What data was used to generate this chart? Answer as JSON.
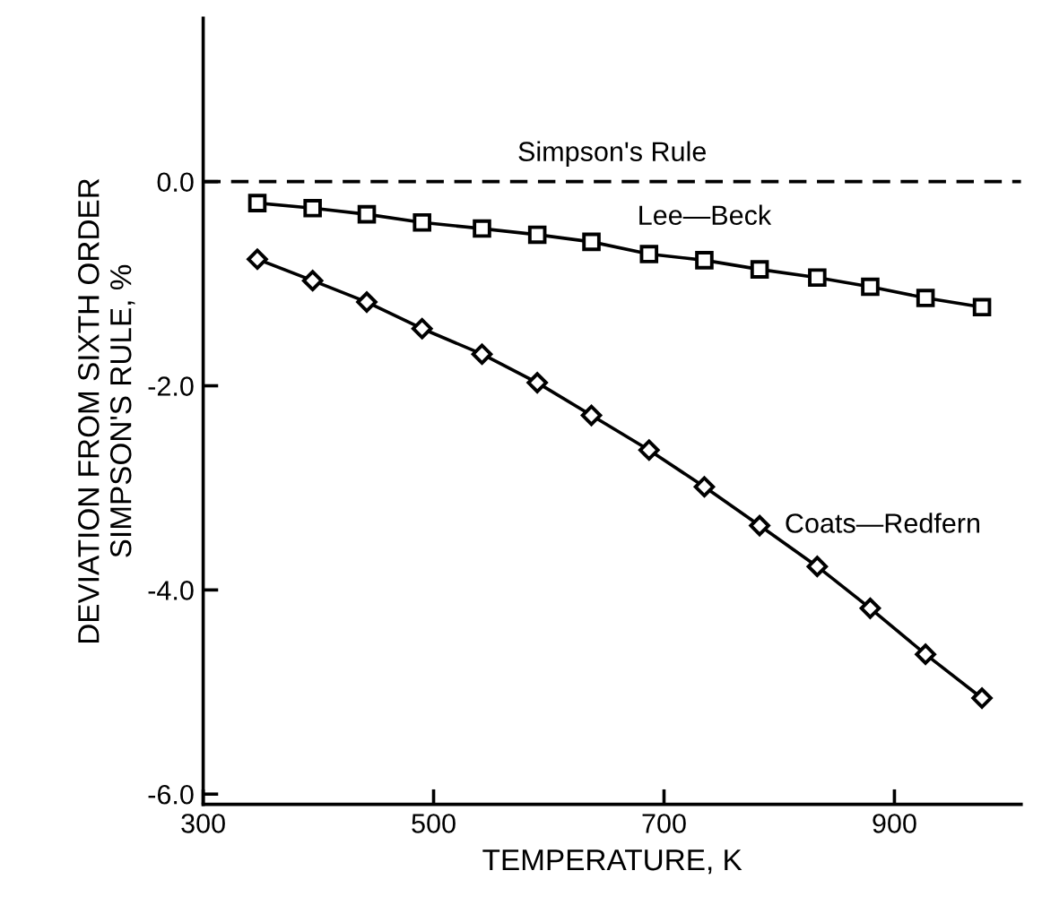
{
  "chart_data": {
    "type": "line",
    "xlabel": "TEMPERATURE, K",
    "ylabel": "DEVIATION FROM SIXTH ORDER\nSIMPSON'S RULE, %",
    "x": [
      347,
      395,
      442,
      490,
      542,
      590,
      637,
      687,
      735,
      783,
      833,
      879,
      927,
      976
    ],
    "series": [
      {
        "name": "Lee—Beck",
        "color": "#000000",
        "marker": "square",
        "values": [
          -0.21,
          -0.26,
          -0.32,
          -0.4,
          -0.46,
          -0.52,
          -0.59,
          -0.71,
          -0.77,
          -0.86,
          -0.94,
          -1.03,
          -1.14,
          -1.23
        ]
      },
      {
        "name": "Coats—Redfern",
        "color": "#000000",
        "marker": "diamond",
        "values": [
          -0.76,
          -0.97,
          -1.18,
          -1.44,
          -1.69,
          -1.97,
          -2.29,
          -2.63,
          -2.99,
          -3.37,
          -3.77,
          -4.18,
          -4.63,
          -5.06
        ]
      }
    ],
    "ref_lines": [
      {
        "axis": "y",
        "value": 0,
        "label": "Simpson's Rule",
        "line_style": "dashed",
        "color": "#000000"
      }
    ],
    "xlim": [
      300,
      1010
    ],
    "ylim": [
      -6.1,
      1.6
    ],
    "xticks": [
      300,
      500,
      700,
      900
    ],
    "yticks": [
      {
        "value": 0,
        "label": "0.0"
      },
      {
        "value": -2,
        "label": "-2.0"
      },
      {
        "value": -4,
        "label": "-4.0"
      },
      {
        "value": -6,
        "label": "-6.0"
      }
    ],
    "grid": false,
    "legend": false,
    "line_style": "solid"
  }
}
